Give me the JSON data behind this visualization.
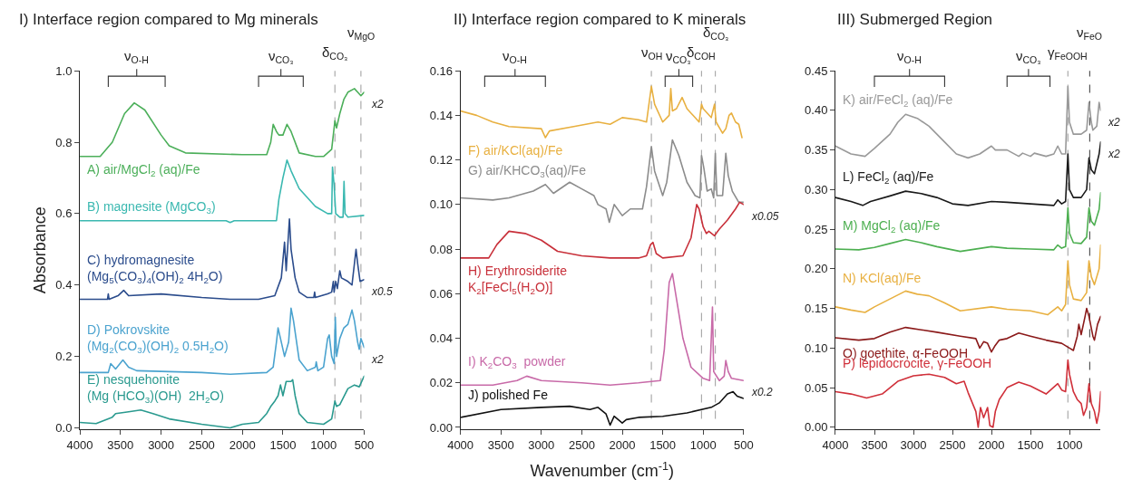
{
  "chart_data": [
    {
      "type": "line",
      "title": "I) Interface region compared to Mg minerals",
      "ylabel": "Absorbance",
      "xlim": [
        4000,
        500
      ],
      "xticks": [
        4000,
        3500,
        3000,
        2500,
        2000,
        1500,
        1000,
        500
      ],
      "ylim": [
        -0.005,
        1.0
      ],
      "yticks": [
        {
          "value": 0,
          "label": "0.0"
        },
        {
          "value": 0.2,
          "label": "0.2"
        },
        {
          "value": 0.4,
          "label": "0.4"
        },
        {
          "value": 0.6,
          "label": "0.6"
        },
        {
          "value": 0.8,
          "label": "0.8"
        },
        {
          "value": 1.0,
          "label": "1.0"
        }
      ],
      "grid": false,
      "legend": false,
      "ref_lines": [
        {
          "axis": "x",
          "value": 860,
          "label": "δ$_{CO₃}$",
          "color": "#aaaaaa",
          "line_style": "dashed"
        },
        {
          "axis": "x",
          "value": 540,
          "label": "ν$_{MgO}$",
          "color": "#aaaaaa",
          "line_style": "dashed"
        }
      ],
      "annotations": [
        "ν$_{O-H}$",
        "ν$_{CO₃}$",
        "x2",
        "x0.5",
        "x2"
      ],
      "series": [
        {
          "name": "A) air/MgCl$_{2}$ (aq)/Fe",
          "color": "#4caf5a",
          "x": [
            4000,
            3750,
            3600,
            3450,
            3330,
            3200,
            3000,
            2900,
            2700,
            2000,
            1700,
            1650,
            1620,
            1580,
            1550,
            1500,
            1450,
            1400,
            1300,
            1100,
            1000,
            900,
            860,
            840,
            800,
            750,
            700,
            620,
            580,
            540,
            500
          ],
          "values": [
            0.76,
            0.76,
            0.8,
            0.88,
            0.91,
            0.89,
            0.82,
            0.79,
            0.77,
            0.765,
            0.765,
            0.8,
            0.85,
            0.83,
            0.82,
            0.82,
            0.85,
            0.83,
            0.77,
            0.76,
            0.76,
            0.78,
            0.86,
            0.84,
            0.88,
            0.92,
            0.94,
            0.95,
            0.94,
            0.93,
            0.94
          ]
        },
        {
          "name": "B) magnesite (MgCO$_{3}$)",
          "color": "#3ab8b0",
          "x": [
            4000,
            3000,
            2200,
            2150,
            2100,
            1600,
            1580,
            1550,
            1500,
            1450,
            1400,
            1300,
            1100,
            950,
            900,
            890,
            870,
            850,
            800,
            760,
            748,
            735,
            700,
            500
          ],
          "values": [
            0.58,
            0.58,
            0.58,
            0.575,
            0.58,
            0.58,
            0.58,
            0.64,
            0.7,
            0.75,
            0.72,
            0.67,
            0.62,
            0.6,
            0.6,
            0.73,
            0.68,
            0.6,
            0.59,
            0.59,
            0.69,
            0.6,
            0.59,
            0.595
          ]
        },
        {
          "name": "C) hydromagnesite\n(Mg$_{5}$(CO$_{3}$)$_{4}$(OH)$_{2}$ 4H$_{2}$O)",
          "color": "#2b4c8c",
          "x": [
            4000,
            3660,
            3650,
            3640,
            3530,
            3460,
            3400,
            3000,
            2500,
            2150,
            1800,
            1600,
            1520,
            1480,
            1460,
            1420,
            1400,
            1350,
            1300,
            1200,
            1120,
            1110,
            1100,
            950,
            900,
            880,
            870,
            850,
            830,
            800,
            780,
            700,
            650,
            600,
            580,
            550,
            500
          ],
          "values": [
            0.36,
            0.36,
            0.375,
            0.36,
            0.37,
            0.385,
            0.37,
            0.375,
            0.365,
            0.36,
            0.36,
            0.37,
            0.42,
            0.52,
            0.44,
            0.585,
            0.5,
            0.42,
            0.38,
            0.365,
            0.365,
            0.38,
            0.365,
            0.375,
            0.38,
            0.41,
            0.38,
            0.41,
            0.39,
            0.44,
            0.42,
            0.41,
            0.4,
            0.5,
            0.46,
            0.41,
            0.415
          ]
        },
        {
          "name": "D) Pokrovskite\n(Mg$_{2}$(CO$_{3}$)(OH)$_{2}$ 0.5H$_{2}$O)",
          "color": "#4ba3cf",
          "x": [
            4000,
            3650,
            3620,
            3560,
            3470,
            3400,
            3300,
            2500,
            2150,
            1700,
            1620,
            1580,
            1560,
            1530,
            1480,
            1430,
            1400,
            1370,
            1300,
            1200,
            1100,
            1090,
            1070,
            1000,
            950,
            930,
            900,
            870,
            855,
            840,
            800,
            750,
            700,
            650,
            620,
            580,
            560,
            540,
            500
          ],
          "values": [
            0.155,
            0.155,
            0.18,
            0.165,
            0.19,
            0.17,
            0.16,
            0.155,
            0.15,
            0.155,
            0.17,
            0.24,
            0.28,
            0.25,
            0.2,
            0.24,
            0.335,
            0.3,
            0.19,
            0.16,
            0.17,
            0.185,
            0.16,
            0.17,
            0.25,
            0.26,
            0.2,
            0.18,
            0.31,
            0.2,
            0.25,
            0.28,
            0.29,
            0.33,
            0.3,
            0.24,
            0.22,
            0.25,
            0.225
          ]
        },
        {
          "name": "E) nesquehonite\n(Mg (HCO$_{3}$)(OH)  2H$_{2}$O)",
          "color": "#2a9a8f",
          "x": [
            4000,
            3800,
            3600,
            3560,
            3400,
            3250,
            3100,
            2900,
            2500,
            2150,
            2000,
            1800,
            1700,
            1650,
            1600,
            1560,
            1530,
            1500,
            1460,
            1400,
            1380,
            1350,
            1300,
            1200,
            1000,
            900,
            860,
            840,
            800,
            700,
            620,
            560,
            500
          ],
          "values": [
            0.015,
            0.012,
            0.03,
            0.04,
            0.045,
            0.05,
            0.04,
            0.025,
            0.01,
            0.0,
            0.01,
            0.015,
            0.04,
            0.06,
            0.075,
            0.09,
            0.12,
            0.09,
            0.13,
            0.13,
            0.135,
            0.09,
            0.04,
            0.015,
            0.01,
            0.025,
            0.075,
            0.06,
            0.065,
            0.11,
            0.12,
            0.115,
            0.145
          ]
        }
      ]
    },
    {
      "type": "line",
      "title": "II) Interface region compared to K minerals",
      "xlabel": "Wavenumber (cm$^{-1}$)",
      "xlim": [
        4000,
        500
      ],
      "xticks": [
        4000,
        3500,
        3000,
        2500,
        2000,
        1500,
        1000,
        500
      ],
      "ylim": [
        -0.001,
        0.16
      ],
      "yticks": [
        {
          "value": 0,
          "label": "0.00"
        },
        {
          "value": 0.02,
          "label": "0.02"
        },
        {
          "value": 0.04,
          "label": "0.04"
        },
        {
          "value": 0.06,
          "label": "0.06"
        },
        {
          "value": 0.08,
          "label": "0.08"
        },
        {
          "value": 0.1,
          "label": "0.10"
        },
        {
          "value": 0.12,
          "label": "0.12"
        },
        {
          "value": 0.14,
          "label": "0.14"
        },
        {
          "value": 0.16,
          "label": "0.16"
        }
      ],
      "grid": false,
      "legend": false,
      "ref_lines": [
        {
          "axis": "x",
          "value": 1640,
          "label": "ν$_{OH}$",
          "color": "#aaaaaa",
          "line_style": "dashed"
        },
        {
          "axis": "x",
          "value": 1020,
          "label": "δ$_{COH}$",
          "color": "#aaaaaa",
          "line_style": "dashed"
        },
        {
          "axis": "x",
          "value": 850,
          "label": "δ$_{CO₃}$",
          "color": "#aaaaaa",
          "line_style": "dashed"
        }
      ],
      "annotations": [
        "ν$_{O-H}$",
        "ν$_{CO₃}$",
        "x0.05",
        "x0.2"
      ],
      "series": [
        {
          "name": "F) air/KCl(aq)/Fe",
          "color": "#e8b040",
          "x": [
            4000,
            3800,
            3600,
            3400,
            3000,
            2950,
            2900,
            2600,
            2300,
            2150,
            2000,
            1800,
            1700,
            1640,
            1600,
            1500,
            1420,
            1400,
            1380,
            1330,
            1260,
            1200,
            1100,
            1050,
            1020,
            1000,
            900,
            860,
            840,
            760,
            720,
            680,
            650,
            600,
            560,
            520
          ],
          "values": [
            0.142,
            0.14,
            0.137,
            0.135,
            0.134,
            0.13,
            0.133,
            0.135,
            0.137,
            0.136,
            0.139,
            0.138,
            0.137,
            0.153,
            0.145,
            0.137,
            0.14,
            0.152,
            0.142,
            0.143,
            0.148,
            0.143,
            0.139,
            0.137,
            0.145,
            0.143,
            0.139,
            0.145,
            0.137,
            0.132,
            0.134,
            0.14,
            0.141,
            0.137,
            0.136,
            0.13
          ]
        },
        {
          "name": "G) air/KHCO$_{3}$(aq)/Fe",
          "color": "#8c8c8c",
          "x": [
            4000,
            3600,
            3400,
            3100,
            2950,
            2850,
            2650,
            2500,
            2350,
            2300,
            2200,
            2160,
            2100,
            2000,
            1900,
            1750,
            1700,
            1640,
            1600,
            1500,
            1450,
            1380,
            1300,
            1200,
            1100,
            1040,
            1020,
            990,
            950,
            900,
            870,
            850,
            830,
            760,
            720,
            690,
            640,
            560,
            500
          ],
          "values": [
            0.103,
            0.102,
            0.103,
            0.106,
            0.109,
            0.105,
            0.11,
            0.107,
            0.104,
            0.1,
            0.098,
            0.092,
            0.1,
            0.095,
            0.098,
            0.098,
            0.108,
            0.126,
            0.115,
            0.104,
            0.11,
            0.129,
            0.122,
            0.11,
            0.104,
            0.103,
            0.122,
            0.116,
            0.106,
            0.107,
            0.103,
            0.123,
            0.104,
            0.104,
            0.123,
            0.113,
            0.106,
            0.101,
            0.101
          ]
        },
        {
          "name": "H) Erythrosiderite\nK$_{2}$[FeCl$_{5}$(H$_{2}$O)]",
          "color": "#c8303a",
          "x": [
            4000,
            3650,
            3550,
            3400,
            3200,
            3000,
            2800,
            2500,
            2150,
            1800,
            1700,
            1650,
            1620,
            1580,
            1500,
            1250,
            1150,
            1080,
            1050,
            1000,
            960,
            930,
            860,
            800,
            700,
            600,
            550,
            500
          ],
          "values": [
            0.076,
            0.076,
            0.082,
            0.088,
            0.087,
            0.084,
            0.079,
            0.077,
            0.076,
            0.076,
            0.077,
            0.082,
            0.083,
            0.078,
            0.076,
            0.077,
            0.085,
            0.1,
            0.098,
            0.09,
            0.087,
            0.088,
            0.086,
            0.089,
            0.093,
            0.098,
            0.101,
            0.1
          ]
        },
        {
          "name": "I) K$_{2}$CO$_{3}$  powder",
          "color": "#c86aa8",
          "x": [
            4000,
            3600,
            3300,
            3180,
            3000,
            2500,
            2150,
            1800,
            1530,
            1480,
            1420,
            1380,
            1340,
            1250,
            1150,
            1000,
            920,
            885,
            870,
            800,
            740,
            720,
            690,
            650,
            500
          ],
          "values": [
            0.019,
            0.019,
            0.021,
            0.023,
            0.021,
            0.02,
            0.019,
            0.02,
            0.021,
            0.035,
            0.065,
            0.069,
            0.06,
            0.04,
            0.027,
            0.022,
            0.021,
            0.054,
            0.025,
            0.021,
            0.023,
            0.03,
            0.025,
            0.022,
            0.021
          ]
        },
        {
          "name": "J) polished Fe",
          "color": "#111111",
          "x": [
            4000,
            3500,
            3000,
            2650,
            2400,
            2300,
            2200,
            2150,
            2100,
            2000,
            1950,
            1800,
            1500,
            1200,
            900,
            800,
            700,
            630,
            580,
            500
          ],
          "values": [
            0.0045,
            0.008,
            0.009,
            0.0095,
            0.008,
            0.009,
            0.006,
            0.001,
            0.005,
            0.002,
            0.0035,
            0.0045,
            0.005,
            0.0065,
            0.009,
            0.011,
            0.015,
            0.016,
            0.014,
            0.013
          ]
        }
      ]
    },
    {
      "type": "line",
      "title": "III) Submerged Region",
      "xlim": [
        4000,
        600
      ],
      "xticks": [
        4000,
        3500,
        3000,
        2500,
        2000,
        1500,
        1000
      ],
      "ylim": [
        -0.003,
        0.45
      ],
      "yticks": [
        {
          "value": 0,
          "label": "0.00"
        },
        {
          "value": 0.05,
          "label": "0.05"
        },
        {
          "value": 0.1,
          "label": "0.10"
        },
        {
          "value": 0.15,
          "label": "0.15"
        },
        {
          "value": 0.2,
          "label": "0.20"
        },
        {
          "value": 0.25,
          "label": "0.25"
        },
        {
          "value": 0.3,
          "label": "0.30"
        },
        {
          "value": 0.35,
          "label": "0.35"
        },
        {
          "value": 0.4,
          "label": "0.40"
        },
        {
          "value": 0.45,
          "label": "0.45"
        }
      ],
      "grid": false,
      "legend": false,
      "ref_lines": [
        {
          "axis": "x",
          "value": 1020,
          "label": "γ$_{FeOOH}$",
          "color": "#aaaaaa",
          "line_style": "dashed"
        },
        {
          "axis": "x",
          "value": 740,
          "label": "ν$_{FeO}$",
          "color": "#555555",
          "line_style": "dashed"
        }
      ],
      "annotations": [
        "ν$_{O-H}$",
        "ν$_{CO₃}$",
        "x2",
        "x2"
      ],
      "series": [
        {
          "name": "K) air/FeCl$_{2}$ (aq)/Fe",
          "color": "#999999",
          "x": [
            4000,
            3800,
            3620,
            3500,
            3300,
            3200,
            3100,
            2950,
            2800,
            2600,
            2450,
            2300,
            2150,
            2000,
            1950,
            1800,
            1650,
            1600,
            1500,
            1450,
            1300,
            1200,
            1150,
            1100,
            1050,
            1020,
            1000,
            950,
            850,
            780,
            750,
            720,
            700,
            650,
            620,
            600
          ],
          "values": [
            0.355,
            0.345,
            0.342,
            0.352,
            0.37,
            0.385,
            0.395,
            0.39,
            0.38,
            0.36,
            0.345,
            0.34,
            0.345,
            0.355,
            0.35,
            0.35,
            0.342,
            0.346,
            0.342,
            0.346,
            0.342,
            0.345,
            0.355,
            0.345,
            0.345,
            0.43,
            0.385,
            0.37,
            0.37,
            0.375,
            0.41,
            0.385,
            0.375,
            0.38,
            0.41,
            0.4
          ]
        },
        {
          "name": "L) FeCl$_{2}$ (aq)/Fe",
          "color": "#1a1a1a",
          "x": [
            4000,
            3800,
            3650,
            3550,
            3300,
            3100,
            2900,
            2700,
            2500,
            2300,
            2000,
            1800,
            1500,
            1200,
            1150,
            1100,
            1050,
            1020,
            1000,
            950,
            850,
            780,
            750,
            720,
            680,
            620,
            600
          ],
          "values": [
            0.29,
            0.285,
            0.28,
            0.285,
            0.292,
            0.298,
            0.295,
            0.29,
            0.282,
            0.28,
            0.285,
            0.284,
            0.282,
            0.28,
            0.287,
            0.282,
            0.285,
            0.345,
            0.3,
            0.29,
            0.29,
            0.3,
            0.34,
            0.325,
            0.32,
            0.345,
            0.36
          ]
        },
        {
          "name": "M) MgCl$_{2}$ (aq)/Fe",
          "color": "#4caf50",
          "x": [
            4000,
            3700,
            3500,
            3300,
            3100,
            2900,
            2700,
            2400,
            2000,
            1800,
            1500,
            1200,
            1150,
            1100,
            1050,
            1020,
            1000,
            950,
            850,
            780,
            750,
            720,
            680,
            620,
            600
          ],
          "values": [
            0.225,
            0.224,
            0.227,
            0.232,
            0.237,
            0.233,
            0.228,
            0.222,
            0.228,
            0.226,
            0.225,
            0.224,
            0.23,
            0.226,
            0.228,
            0.277,
            0.245,
            0.233,
            0.232,
            0.24,
            0.277,
            0.26,
            0.255,
            0.275,
            0.296
          ]
        },
        {
          "name": "N) KCl(aq)/Fe",
          "color": "#e8b040",
          "x": [
            4000,
            3800,
            3620,
            3500,
            3300,
            3100,
            2950,
            2800,
            2600,
            2400,
            2000,
            1800,
            1500,
            1280,
            1150,
            1100,
            1050,
            1020,
            1000,
            950,
            850,
            780,
            750,
            720,
            680,
            620,
            600
          ],
          "values": [
            0.152,
            0.148,
            0.145,
            0.152,
            0.162,
            0.172,
            0.168,
            0.166,
            0.157,
            0.147,
            0.152,
            0.149,
            0.147,
            0.142,
            0.152,
            0.147,
            0.155,
            0.21,
            0.18,
            0.162,
            0.16,
            0.17,
            0.21,
            0.19,
            0.18,
            0.2,
            0.23
          ]
        },
        {
          "name": "O) goethite, α-FeOOH",
          "color": "#8b1a1a",
          "x": [
            4000,
            3700,
            3500,
            3300,
            3100,
            2900,
            2700,
            2400,
            2200,
            2150,
            2100,
            2050,
            2000,
            1960,
            1900,
            1800,
            1650,
            1500,
            1300,
            1100,
            1000,
            950,
            900,
            880,
            850,
            800,
            780,
            750,
            700,
            680,
            640,
            600
          ],
          "values": [
            0.113,
            0.11,
            0.112,
            0.12,
            0.126,
            0.123,
            0.12,
            0.115,
            0.112,
            0.1,
            0.108,
            0.106,
            0.095,
            0.102,
            0.11,
            0.112,
            0.119,
            0.115,
            0.11,
            0.106,
            0.1,
            0.097,
            0.115,
            0.13,
            0.117,
            0.14,
            0.15,
            0.14,
            0.115,
            0.11,
            0.13,
            0.14
          ]
        },
        {
          "name": "P) lepidocrocite, γ-FeOOH",
          "color": "#d0303a",
          "x": [
            4000,
            3800,
            3600,
            3400,
            3200,
            3000,
            2800,
            2600,
            2450,
            2350,
            2300,
            2200,
            2170,
            2140,
            2100,
            2050,
            2020,
            1980,
            1950,
            1900,
            1800,
            1650,
            1500,
            1300,
            1150,
            1100,
            1050,
            1020,
            1000,
            950,
            900,
            850,
            820,
            780,
            750,
            720,
            680,
            650,
            620,
            600
          ],
          "values": [
            0.045,
            0.042,
            0.037,
            0.042,
            0.058,
            0.065,
            0.067,
            0.063,
            0.055,
            0.058,
            0.044,
            0.02,
            0.0,
            0.025,
            0.012,
            0.025,
            0.002,
            0.0,
            0.02,
            0.035,
            0.05,
            0.057,
            0.052,
            0.042,
            0.055,
            0.047,
            0.045,
            0.085,
            0.067,
            0.045,
            0.035,
            0.03,
            0.015,
            0.025,
            0.055,
            0.03,
            0.02,
            0.005,
            0.02,
            0.045
          ]
        }
      ]
    }
  ]
}
